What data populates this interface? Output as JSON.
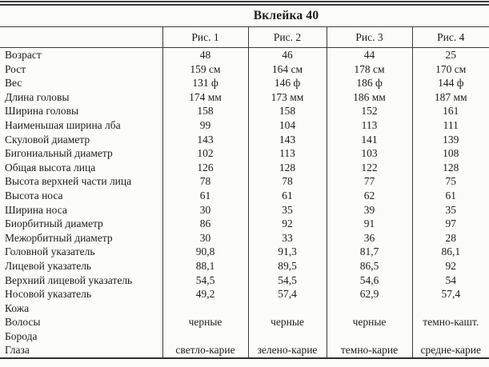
{
  "page": {
    "title": "Вклейка 40"
  },
  "table": {
    "column_headers": [
      "Рис. 1",
      "Рис. 2",
      "Рис. 3",
      "Рис. 4"
    ],
    "rows": [
      {
        "label": "Возраст",
        "values": [
          "48",
          "46",
          "44",
          "25"
        ]
      },
      {
        "label": "Рост",
        "values": [
          "159 см",
          "164 см",
          "178 см",
          "170 см"
        ]
      },
      {
        "label": "Вес",
        "values": [
          "131 ф",
          "146 ф",
          "186 ф",
          "144 ф"
        ]
      },
      {
        "label": "Длина головы",
        "values": [
          "174 мм",
          "173 мм",
          "186 мм",
          "187 мм"
        ]
      },
      {
        "label": "Ширина головы",
        "values": [
          "158",
          "158",
          "152",
          "161"
        ]
      },
      {
        "label": "Наименьшая ширина лба",
        "values": [
          "99",
          "104",
          "113",
          "111"
        ]
      },
      {
        "label": "Скуловой диаметр",
        "values": [
          "143",
          "143",
          "141",
          "139"
        ]
      },
      {
        "label": "Бигониальный диаметр",
        "values": [
          "102",
          "113",
          "103",
          "108"
        ]
      },
      {
        "label": "Общая высота лица",
        "values": [
          "126",
          "128",
          "122",
          "128"
        ]
      },
      {
        "label": "Высота верхней части лица",
        "values": [
          "78",
          "78",
          "77",
          "75"
        ]
      },
      {
        "label": "Высота носа",
        "values": [
          "61",
          "61",
          "62",
          "61"
        ]
      },
      {
        "label": "Ширина носа",
        "values": [
          "30",
          "35",
          "39",
          "35"
        ]
      },
      {
        "label": "Биорбитный диаметр",
        "values": [
          "86",
          "92",
          "91",
          "97"
        ]
      },
      {
        "label": "Межорбитный диаметр",
        "values": [
          "30",
          "33",
          "36",
          "28"
        ]
      },
      {
        "label": "Головной указатель",
        "values": [
          "90,8",
          "91,3",
          "81,7",
          "86,1"
        ]
      },
      {
        "label": "Лицевой указатель",
        "values": [
          "88,1",
          "89,5",
          "86,5",
          "92"
        ]
      },
      {
        "label": "Верхний лицевой указатель",
        "values": [
          "54,5",
          "54,5",
          "54,6",
          "54"
        ]
      },
      {
        "label": "Носовой указатель",
        "values": [
          "49,2",
          "57,4",
          "62,9",
          "57,4"
        ]
      },
      {
        "label": "Кожа",
        "values": [
          "",
          "",
          "",
          ""
        ]
      },
      {
        "label": "Волосы",
        "values": [
          "черные",
          "черные",
          "черные",
          "темно-кашт."
        ]
      },
      {
        "label": "Борода",
        "values": [
          "",
          "",
          "",
          ""
        ]
      },
      {
        "label": "Глаза",
        "values": [
          "светло-карие",
          "зелено-карие",
          "темно-карие",
          "средне-карие"
        ]
      }
    ]
  },
  "colors": {
    "background": "#fcfcfa",
    "text": "#1c1c1c",
    "rule": "#3c3c3c"
  }
}
